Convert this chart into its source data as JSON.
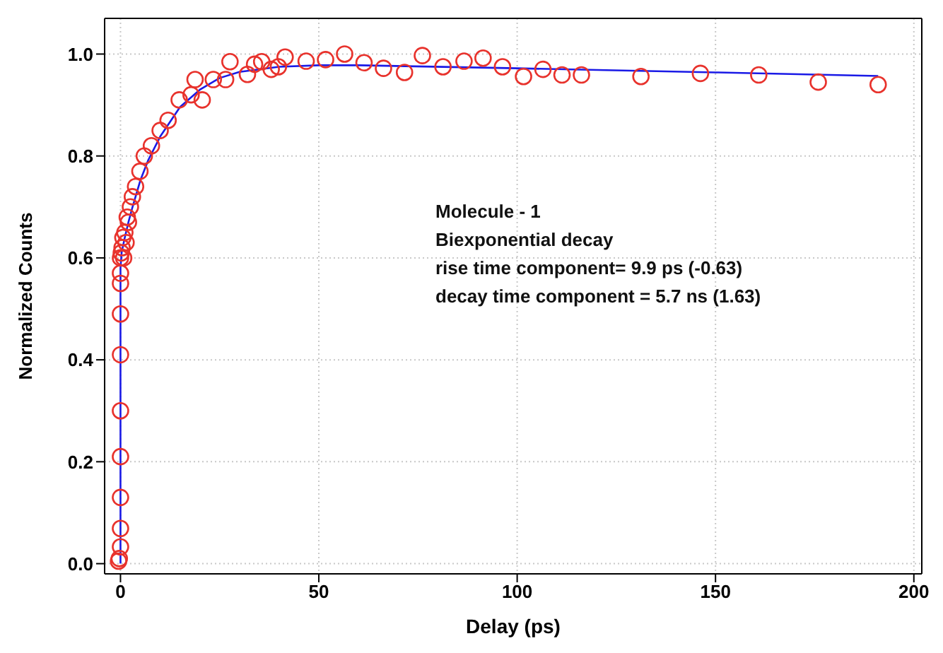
{
  "chart_data": {
    "type": "scatter",
    "xlabel": "Delay (ps)",
    "ylabel": "Normalized Counts",
    "xlim": [
      -4,
      202
    ],
    "ylim": [
      -0.02,
      1.07
    ],
    "xticks": [
      0,
      50,
      100,
      150,
      200
    ],
    "yticks": [
      {
        "value": 0,
        "label": "0.0"
      },
      {
        "value": 0.2,
        "label": "0.2"
      },
      {
        "value": 0.4,
        "label": "0.4"
      },
      {
        "value": 0.6,
        "label": "0.6"
      },
      {
        "value": 0.8,
        "label": "0.8"
      },
      {
        "value": 1,
        "label": "1.0"
      }
    ],
    "grid": true,
    "annotations": [
      "Molecule - 1",
      "Biexponential decay",
      "rise time component= 9.9 ps (-0.63)",
      "decay time component = 5.7 ns (1.63)"
    ],
    "series": [
      {
        "marker": "circle",
        "color": "#e8322c",
        "x": [
          -0.5,
          -0.3,
          0,
          0,
          0,
          0,
          0,
          0,
          0,
          0,
          0,
          0,
          0.2,
          0.4,
          0.6,
          0.8,
          1.1,
          1.4,
          1.7,
          2.0,
          2.5,
          3.0,
          3.8,
          4.9,
          6.0,
          7.8,
          10,
          12,
          14.8,
          17.8,
          18.8,
          20.6,
          23.4,
          26.5,
          27.6,
          32,
          33.8,
          35.6,
          38,
          39.8,
          41.5,
          46.8,
          51.7,
          56.5,
          61.4,
          66.3,
          71.6,
          76.1,
          81.3,
          86.6,
          91.4,
          96.3,
          101.6,
          106.5,
          111.3,
          116.2,
          131.2,
          146.2,
          160.9,
          175.9,
          191
        ],
        "values": [
          0.005,
          0.01,
          0.033,
          0.069,
          0.13,
          0.21,
          0.3,
          0.41,
          0.49,
          0.55,
          0.57,
          0.6,
          0.61,
          0.62,
          0.64,
          0.6,
          0.65,
          0.63,
          0.68,
          0.67,
          0.7,
          0.72,
          0.74,
          0.77,
          0.8,
          0.82,
          0.85,
          0.87,
          0.91,
          0.92,
          0.95,
          0.91,
          0.95,
          0.95,
          0.985,
          0.96,
          0.98,
          0.985,
          0.97,
          0.975,
          0.994,
          0.986,
          0.989,
          1.0,
          0.983,
          0.972,
          0.964,
          0.997,
          0.975,
          0.986,
          0.992,
          0.975,
          0.956,
          0.97,
          0.959,
          0.959,
          0.956,
          0.962,
          0.959,
          0.945,
          0.94
        ]
      },
      {
        "type": "line",
        "marker": "none",
        "line_style": "solid",
        "color": "#1a1ae6",
        "x": [
          0,
          0,
          0.3,
          1,
          2,
          3,
          5,
          7,
          10,
          15,
          20,
          25,
          30,
          40,
          50,
          60,
          100,
          150,
          191
        ],
        "values": [
          0,
          0.58,
          0.611,
          0.637,
          0.67,
          0.699,
          0.752,
          0.792,
          0.838,
          0.896,
          0.93,
          0.953,
          0.965,
          0.975,
          0.978,
          0.978,
          0.972,
          0.964,
          0.957
        ]
      }
    ]
  }
}
